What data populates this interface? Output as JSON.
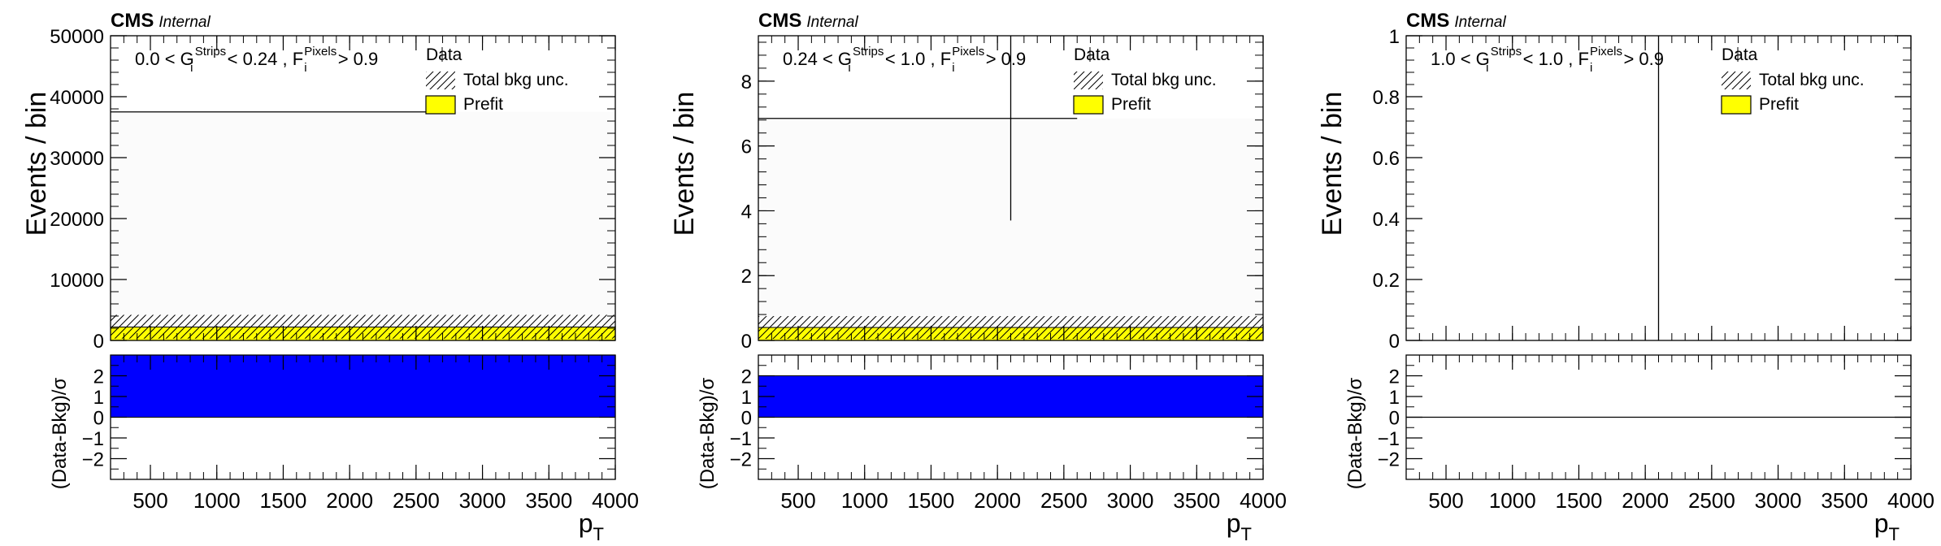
{
  "chart_data": [
    {
      "type": "bar",
      "title": "",
      "header": {
        "experiment": "CMS",
        "status": "Internal"
      },
      "region_label": {
        "low": "0.0",
        "g": "G",
        "g_sup": "Strips",
        "g_sub": "i",
        "mid": "< 0.24 ,",
        "f": "F",
        "f_sup": "Pixels",
        "f_sub": "i",
        "cut": "> 0.9"
      },
      "ylabel": "Events / bin",
      "ylim": [
        0,
        50000
      ],
      "yticks": [
        0,
        10000,
        20000,
        30000,
        40000,
        50000
      ],
      "xlabel": "p",
      "xlabel_sub": "T",
      "xlim": [
        200,
        4000
      ],
      "xticks": [
        500,
        1000,
        1500,
        2000,
        2500,
        3000,
        3500,
        4000
      ],
      "legend": {
        "position": "top-right",
        "entries": [
          "Data",
          "Total bkg unc.",
          "Prefit"
        ]
      },
      "colors": {
        "prefit": "#ffff00",
        "pull": "#0000ff",
        "background_fill": "#fbfbfb"
      },
      "series": [
        {
          "name": "Prefit",
          "x_range": [
            200,
            4000
          ],
          "value": 2200
        },
        {
          "name": "Total bkg unc.",
          "x_range": [
            200,
            4000
          ],
          "band": [
            300,
            4200
          ]
        },
        {
          "name": "Data",
          "x_range": [
            200,
            2600
          ],
          "value": 37500
        }
      ],
      "ratio": {
        "ylabel": "(Data-Bkg)/σ",
        "ylim": [
          -3,
          3
        ],
        "yticks": [
          -2,
          -1,
          0,
          1,
          2
        ],
        "pull": {
          "x_range": [
            200,
            4000
          ],
          "value": 3.0
        }
      }
    },
    {
      "type": "bar",
      "title": "",
      "header": {
        "experiment": "CMS",
        "status": "Internal"
      },
      "region_label": {
        "low": "0.24",
        "g": "G",
        "g_sup": "Strips",
        "g_sub": "i",
        "mid": "< 1.0 ,",
        "f": "F",
        "f_sup": "Pixels",
        "f_sub": "i",
        "cut": "> 0.9"
      },
      "ylabel": "Events / bin",
      "ylim": [
        0,
        9.4
      ],
      "yticks": [
        0,
        2,
        4,
        6,
        8
      ],
      "xlabel": "p",
      "xlabel_sub": "T",
      "xlim": [
        200,
        4000
      ],
      "xticks": [
        500,
        1000,
        1500,
        2000,
        2500,
        3000,
        3500,
        4000
      ],
      "legend": {
        "position": "top-right",
        "entries": [
          "Data",
          "Total bkg unc.",
          "Prefit"
        ]
      },
      "colors": {
        "prefit": "#ffff00",
        "pull": "#0000ff",
        "background_fill": "#fbfbfb"
      },
      "series": [
        {
          "name": "Prefit",
          "x_range": [
            200,
            4000
          ],
          "value": 0.4
        },
        {
          "name": "Total bkg unc.",
          "x_range": [
            200,
            4000
          ],
          "band": [
            0.05,
            0.75
          ]
        },
        {
          "name": "Data",
          "x_range": [
            200,
            2600
          ],
          "value": 6.85,
          "error_x": 2100,
          "error_range": [
            3.7,
            9.4
          ]
        }
      ],
      "ratio": {
        "ylabel": "(Data-Bkg)/σ",
        "ylim": [
          -3,
          3
        ],
        "yticks": [
          -2,
          -1,
          0,
          1,
          2
        ],
        "pull": {
          "x_range": [
            200,
            4000
          ],
          "value": 2.0
        }
      }
    },
    {
      "type": "bar",
      "title": "",
      "header": {
        "experiment": "CMS",
        "status": "Internal"
      },
      "region_label": {
        "low": "1.0",
        "g": "G",
        "g_sup": "Strips",
        "g_sub": "i",
        "mid": "< 1.0 ,",
        "f": "F",
        "f_sup": "Pixels",
        "f_sub": "i",
        "cut": "> 0.9"
      },
      "ylabel": "Events / bin",
      "ylim": [
        0,
        1
      ],
      "yticks": [
        0,
        0.2,
        0.4,
        0.6,
        0.8,
        1
      ],
      "xlabel": "p",
      "xlabel_sub": "T",
      "xlim": [
        200,
        4000
      ],
      "xticks": [
        500,
        1000,
        1500,
        2000,
        2500,
        3000,
        3500,
        4000
      ],
      "legend": {
        "position": "top-right",
        "entries": [
          "Data",
          "Total bkg unc.",
          "Prefit"
        ]
      },
      "colors": {
        "prefit": "#ffff00",
        "pull": "#0000ff",
        "background_fill": "#ffffff"
      },
      "series": [
        {
          "name": "Data",
          "error_x": 2100,
          "error_range": [
            0,
            1
          ]
        }
      ],
      "ratio": {
        "ylabel": "(Data-Bkg)/σ",
        "ylim": [
          -3,
          3
        ],
        "yticks": [
          -2,
          -1,
          0,
          1,
          2
        ],
        "pull": {
          "x_range": [
            200,
            4000
          ],
          "value": 0
        }
      }
    }
  ]
}
